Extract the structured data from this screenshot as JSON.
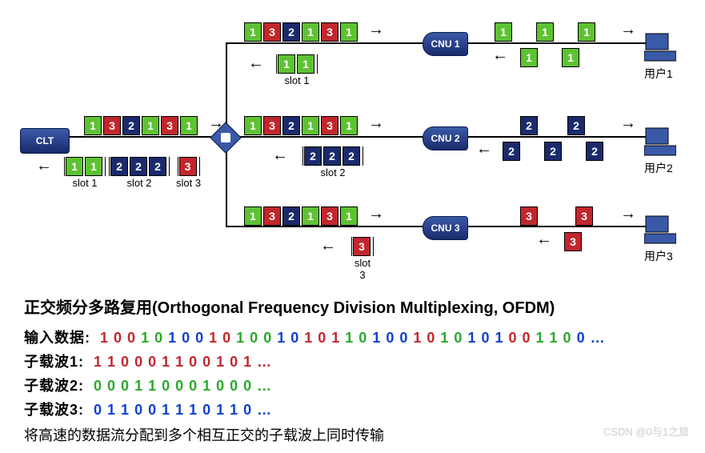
{
  "colors": {
    "green": "#5ec232",
    "red": "#c1272d",
    "blue": "#1a2a6c"
  },
  "devices": {
    "clt": "CLT",
    "cnu1": "CNU 1",
    "cnu2": "CNU 2",
    "cnu3": "CNU 3",
    "user1": "用户1",
    "user2": "用户2",
    "user3": "用户3"
  },
  "slots": {
    "slot1": "slot 1",
    "slot2": "slot 2",
    "slot3": "slot 3",
    "slot3_short": "slot\n3"
  },
  "seq_132131": [
    {
      "v": "1",
      "c": "g"
    },
    {
      "v": "3",
      "c": "r"
    },
    {
      "v": "2",
      "c": "b"
    },
    {
      "v": "1",
      "c": "g"
    },
    {
      "v": "3",
      "c": "r"
    },
    {
      "v": "1",
      "c": "g"
    }
  ],
  "branch1_out": [
    {
      "v": "1",
      "c": "g"
    },
    {
      "v": "1",
      "c": "g"
    },
    {
      "v": "1",
      "c": "g"
    }
  ],
  "branch1_ret": [
    {
      "v": "1",
      "c": "g"
    },
    {
      "v": "1",
      "c": "g"
    }
  ],
  "branch2_out": [
    {
      "v": "2",
      "c": "b"
    },
    {
      "v": "2",
      "c": "b"
    }
  ],
  "branch2_ret": [
    {
      "v": "2",
      "c": "b"
    },
    {
      "v": "2",
      "c": "b"
    },
    {
      "v": "2",
      "c": "b"
    }
  ],
  "branch3_out": [
    {
      "v": "3",
      "c": "r"
    },
    {
      "v": "3",
      "c": "r"
    }
  ],
  "branch3_ret": [
    {
      "v": "3",
      "c": "r"
    }
  ],
  "clt_slot1": [
    {
      "v": "1",
      "c": "g"
    },
    {
      "v": "1",
      "c": "g"
    }
  ],
  "clt_slot2": [
    {
      "v": "2",
      "c": "b"
    },
    {
      "v": "2",
      "c": "b"
    },
    {
      "v": "2",
      "c": "b"
    }
  ],
  "clt_slot3": [
    {
      "v": "3",
      "c": "r"
    }
  ],
  "mid_slot1": [
    {
      "v": "1",
      "c": "g"
    },
    {
      "v": "1",
      "c": "g"
    }
  ],
  "mid_slot2": [
    {
      "v": "2",
      "c": "b"
    },
    {
      "v": "2",
      "c": "b"
    },
    {
      "v": "2",
      "c": "b"
    }
  ],
  "mid_slot3": [
    {
      "v": "3",
      "c": "r"
    }
  ],
  "title": "正交频分多路复用(Orthogonal Frequency Division Multiplexing, OFDM)",
  "rows": {
    "input_label": "输入数据:",
    "sub1_label": "子载波1:",
    "sub2_label": "子载波2:",
    "sub3_label": "子载波3:"
  },
  "input_data": [
    {
      "t": "1 0 0",
      "c": "cr"
    },
    {
      "t": " 1 0 ",
      "c": "cg"
    },
    {
      "t": "1 0 0",
      "c": "cb"
    },
    {
      "t": " 1 0 ",
      "c": "cr"
    },
    {
      "t": "1 0 0",
      "c": "cg"
    },
    {
      "t": " 1 0 ",
      "c": "cb"
    },
    {
      "t": "1 0 1",
      "c": "cr"
    },
    {
      "t": " 1 0 ",
      "c": "cg"
    },
    {
      "t": "1 0 0",
      "c": "cb"
    },
    {
      "t": " 1 0 ",
      "c": "cr"
    },
    {
      "t": " 1 0 ",
      "c": "cg"
    },
    {
      "t": "1 0 1",
      "c": "cb"
    },
    {
      "t": " 0 0 ",
      "c": "cr"
    },
    {
      "t": "1 1 0",
      "c": "cg"
    },
    {
      "t": " 0 …",
      "c": "cb"
    }
  ],
  "sub1": "1 1 0 0 0 1 1 0 0 1 0 1 …",
  "sub2": "0 0 0 1 1 0 0 0 1 0 0 0 …",
  "sub3": "0 1 1 0 0 1 1 1 0 1 1 0 …",
  "footer": "将高速的数据流分配到多个相互正交的子载波上同时传输",
  "watermark": "CSDN @0与1之旅"
}
